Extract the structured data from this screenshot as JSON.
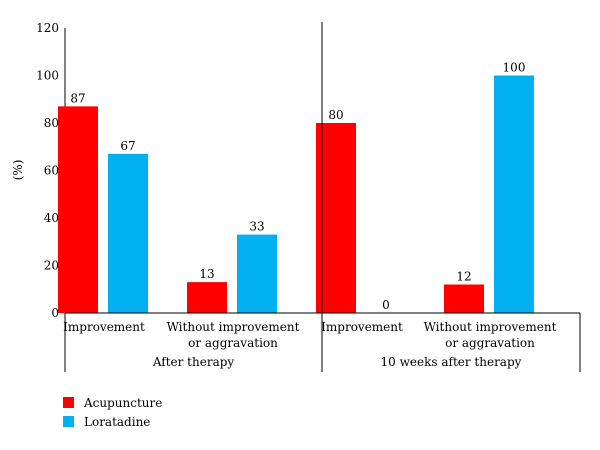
{
  "chart_data": {
    "type": "bar",
    "ylabel": "(%)",
    "ylim": [
      0,
      120
    ],
    "yticks": [
      0,
      20,
      40,
      60,
      80,
      100,
      120
    ],
    "groups": [
      {
        "label": "After therapy",
        "categories": [
          {
            "label_lines": [
              "Improvement"
            ],
            "values": [
              87,
              67
            ]
          },
          {
            "label_lines": [
              "Without improvement",
              "or aggravation"
            ],
            "values": [
              13,
              33
            ]
          }
        ]
      },
      {
        "label": "10 weeks after therapy",
        "categories": [
          {
            "label_lines": [
              "Improvement"
            ],
            "values": [
              80,
              0
            ]
          },
          {
            "label_lines": [
              "Without improvement",
              "or aggravation"
            ],
            "values": [
              12,
              100
            ]
          }
        ]
      }
    ],
    "series": [
      {
        "name": "Acupuncture",
        "color": "#ff0000"
      },
      {
        "name": "Loratadine",
        "color": "#00b0f0"
      }
    ],
    "grid": false,
    "legend_position": "bottom-left"
  }
}
